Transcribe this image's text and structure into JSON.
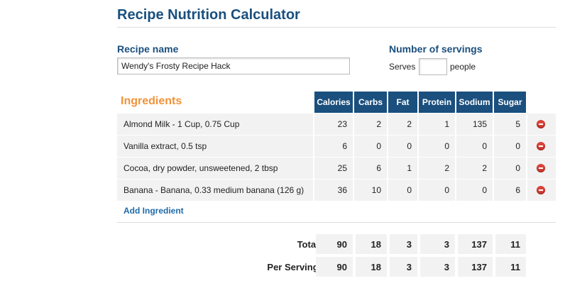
{
  "header": {
    "title": "Recipe Nutrition Calculator"
  },
  "form": {
    "recipe_name_label": "Recipe name",
    "recipe_name_value": "Wendy's Frosty Recipe Hack",
    "servings_label": "Number of servings",
    "serves_prefix": "Serves",
    "serves_suffix": "people"
  },
  "table": {
    "title": "Ingredients",
    "columns": [
      "Calories",
      "Carbs",
      "Fat",
      "Protein",
      "Sodium",
      "Sugar"
    ],
    "rows": [
      {
        "name": "Almond Milk - 1 Cup, 0.75 Cup",
        "values": [
          23,
          2,
          2,
          1,
          135,
          5
        ]
      },
      {
        "name": "Vanilla extract, 0.5 tsp",
        "values": [
          6,
          0,
          0,
          0,
          0,
          0
        ]
      },
      {
        "name": "Cocoa, dry powder, unsweetened, 2 tbsp",
        "values": [
          25,
          6,
          1,
          2,
          2,
          0
        ]
      },
      {
        "name": "Banana - Banana, 0.33 medium banana (126 g)",
        "values": [
          36,
          10,
          0,
          0,
          0,
          6
        ]
      }
    ],
    "add_link": "Add Ingredient"
  },
  "totals": {
    "label": "Total:",
    "values": [
      90,
      18,
      3,
      3,
      137,
      11
    ]
  },
  "per_serving": {
    "label": "Per Serving:",
    "values": [
      90,
      18,
      3,
      3,
      137,
      11
    ]
  }
}
